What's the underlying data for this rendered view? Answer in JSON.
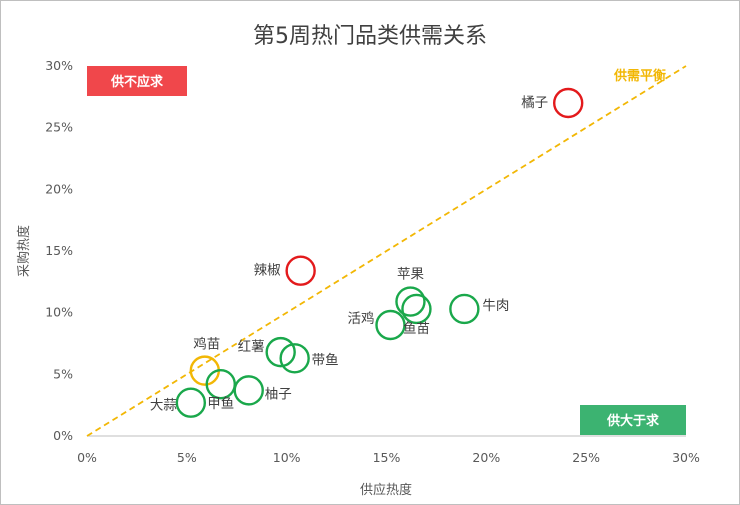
{
  "chart_data": {
    "type": "scatter",
    "title": "第5周热门品类供需关系",
    "xlabel": "供应热度",
    "ylabel": "采购热度",
    "xlim": [
      0,
      30
    ],
    "ylim": [
      0,
      30
    ],
    "x_ticks": [
      "0%",
      "5%",
      "10%",
      "15%",
      "20%",
      "25%",
      "30%"
    ],
    "y_ticks": [
      "0%",
      "5%",
      "10%",
      "15%",
      "20%",
      "25%",
      "30%"
    ],
    "grid": false,
    "reference_line": {
      "label": "供需平衡",
      "from": [
        0,
        0
      ],
      "to": [
        30,
        30
      ],
      "color": "#f2b705",
      "style": "dashed"
    },
    "quadrant_labels": {
      "top_left": {
        "text": "供不应求",
        "color": "#f0474b"
      },
      "bottom_right": {
        "text": "供大于求",
        "color": "#3cb371"
      }
    },
    "points": [
      {
        "label": "橘子",
        "x": 24.1,
        "y": 27.0,
        "color": "#e31a1c"
      },
      {
        "label": "辣椒",
        "x": 10.7,
        "y": 13.4,
        "color": "#e31a1c"
      },
      {
        "label": "苹果",
        "x": 16.2,
        "y": 10.9,
        "color": "#1aa84b"
      },
      {
        "label": "牛肉",
        "x": 18.9,
        "y": 10.3,
        "color": "#1aa84b"
      },
      {
        "label": "活鸡",
        "x": 15.2,
        "y": 9.0,
        "color": "#1aa84b"
      },
      {
        "label": "鱼苗",
        "x": 16.5,
        "y": 10.3,
        "color": "#1aa84b"
      },
      {
        "label": "红薯",
        "x": 9.7,
        "y": 6.8,
        "color": "#1aa84b"
      },
      {
        "label": "带鱼",
        "x": 10.4,
        "y": 6.3,
        "color": "#1aa84b"
      },
      {
        "label": "鸡苗",
        "x": 5.9,
        "y": 5.3,
        "color": "#f2b705"
      },
      {
        "label": "甲鱼",
        "x": 6.7,
        "y": 4.2,
        "color": "#1aa84b"
      },
      {
        "label": "柚子",
        "x": 8.1,
        "y": 3.7,
        "color": "#1aa84b"
      },
      {
        "label": "大蒜",
        "x": 5.2,
        "y": 2.7,
        "color": "#1aa84b"
      }
    ]
  }
}
